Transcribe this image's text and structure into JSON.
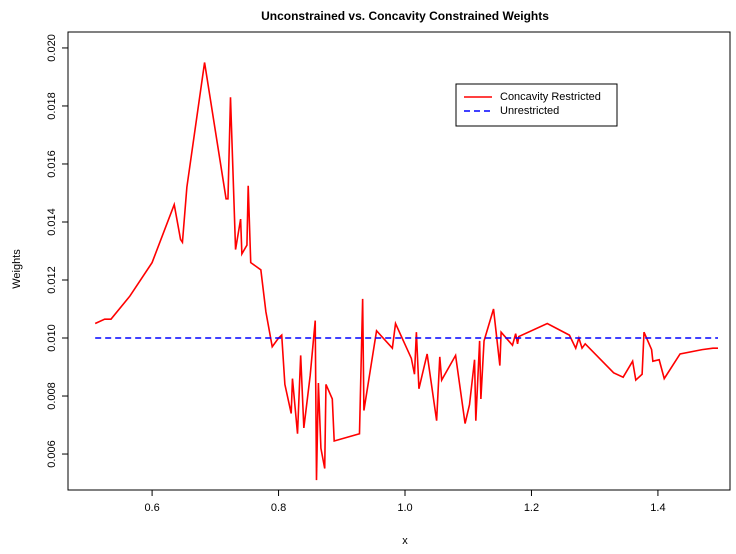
{
  "chart_data": {
    "type": "line",
    "title": "Unconstrained vs. Concavity Constrained Weights",
    "x_label": "x",
    "y_label": "Weights",
    "xlim": [
      0.467,
      1.514
    ],
    "ylim": [
      0.00476,
      0.02055
    ],
    "xticks": [
      0.6,
      0.8,
      {
        "value": 1.0,
        "label": "1.0"
      },
      1.2,
      1.4
    ],
    "yticks": [
      0.006,
      0.008,
      {
        "value": 0.01,
        "label": "0.010"
      },
      0.012,
      0.014,
      0.016,
      0.018,
      {
        "value": 0.02,
        "label": "0.020"
      }
    ],
    "series": [
      {
        "name": "Concavity Restricted",
        "color": "#ff0000",
        "dash": false,
        "x": [
          0.51,
          0.525,
          0.535,
          0.565,
          0.6,
          0.635,
          0.645,
          0.648,
          0.655,
          0.683,
          0.717,
          0.72,
          0.724,
          0.732,
          0.74,
          0.742,
          0.75,
          0.752,
          0.756,
          0.772,
          0.78,
          0.79,
          0.8,
          0.805,
          0.81,
          0.82,
          0.822,
          0.83,
          0.835,
          0.84,
          0.85,
          0.858,
          0.86,
          0.863,
          0.867,
          0.873,
          0.875,
          0.885,
          0.888,
          0.928,
          0.933,
          0.935,
          0.955,
          0.98,
          0.985,
          1.01,
          1.015,
          1.018,
          1.022,
          1.035,
          1.05,
          1.055,
          1.058,
          1.08,
          1.095,
          1.102,
          1.11,
          1.112,
          1.118,
          1.12,
          1.125,
          1.14,
          1.15,
          1.152,
          1.17,
          1.175,
          1.178,
          1.18,
          1.225,
          1.26,
          1.27,
          1.275,
          1.28,
          1.285,
          1.33,
          1.345,
          1.36,
          1.365,
          1.375,
          1.378,
          1.39,
          1.392,
          1.402,
          1.41,
          1.435,
          1.47,
          1.487,
          1.495
        ],
        "values": [
          0.0105,
          0.01065,
          0.01065,
          0.01145,
          0.0126,
          0.0146,
          0.0134,
          0.0133,
          0.0152,
          0.0195,
          0.0148,
          0.0148,
          0.0183,
          0.01305,
          0.0141,
          0.0129,
          0.0132,
          0.01525,
          0.0126,
          0.01235,
          0.0109,
          0.0097,
          0.01,
          0.0101,
          0.0084,
          0.0074,
          0.0086,
          0.0067,
          0.0094,
          0.0069,
          0.0087,
          0.0106,
          0.0051,
          0.00845,
          0.0062,
          0.0055,
          0.0084,
          0.0079,
          0.00645,
          0.0067,
          0.01135,
          0.0075,
          0.01025,
          0.00965,
          0.0105,
          0.0093,
          0.00875,
          0.0102,
          0.00825,
          0.00945,
          0.00715,
          0.00935,
          0.00855,
          0.0094,
          0.00705,
          0.0077,
          0.00925,
          0.00715,
          0.0099,
          0.0079,
          0.0099,
          0.011,
          0.00905,
          0.0102,
          0.00975,
          0.01015,
          0.0098,
          0.01005,
          0.0105,
          0.0101,
          0.00965,
          0.01,
          0.00965,
          0.0098,
          0.0088,
          0.00865,
          0.0092,
          0.00855,
          0.00875,
          0.0102,
          0.0096,
          0.0092,
          0.00925,
          0.0086,
          0.00945,
          0.0096,
          0.00965,
          0.00965
        ]
      },
      {
        "name": "Unrestricted",
        "color": "#0000ff",
        "dash": true,
        "x": [
          0.51,
          1.495
        ],
        "values": [
          0.01,
          0.01
        ]
      }
    ]
  }
}
